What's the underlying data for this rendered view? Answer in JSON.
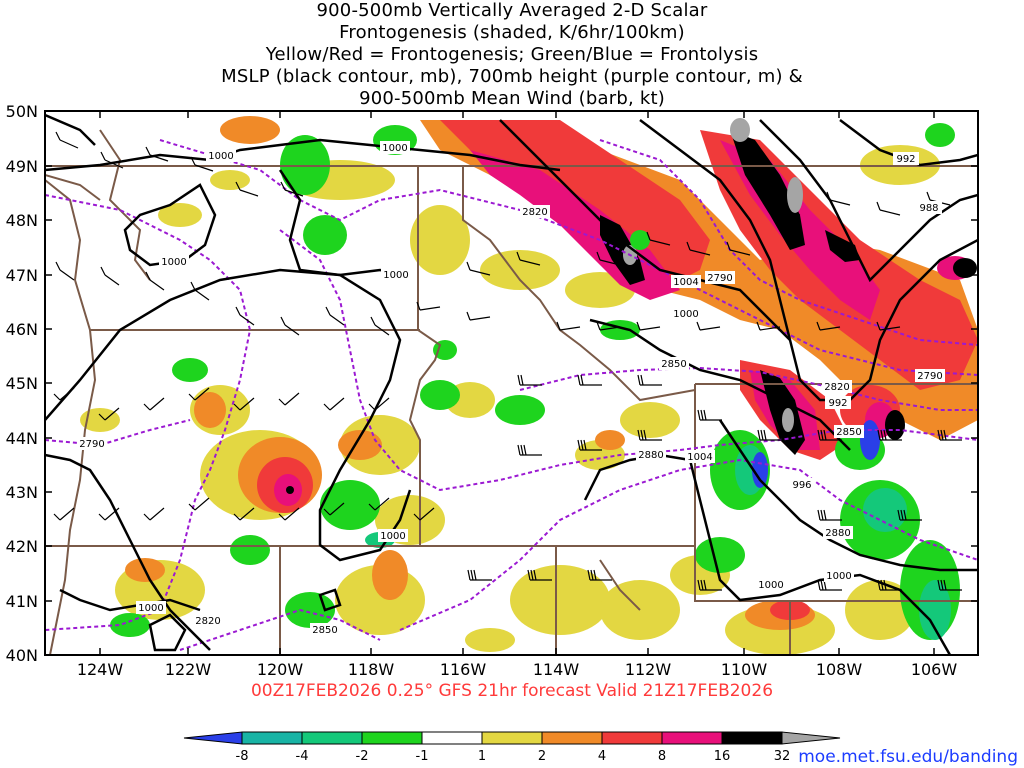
{
  "title": {
    "lines": [
      "900-500mb Vertically Averaged 2-D Scalar",
      "Frontogenesis (shaded, K/6hr/100km)",
      "Yellow/Red = Frontogenesis;  Green/Blue = Frontolysis",
      "MSLP (black contour, mb), 700mb height (purple contour, m) &",
      "900-500mb Mean Wind (barb, kt)"
    ]
  },
  "axes": {
    "lat_labels": [
      "50N",
      "49N",
      "48N",
      "47N",
      "46N",
      "45N",
      "44N",
      "43N",
      "42N",
      "41N",
      "40N"
    ],
    "lon_labels": [
      "124W",
      "122W",
      "120W",
      "118W",
      "116W",
      "114W",
      "112W",
      "110W",
      "108W",
      "106W"
    ],
    "lat_range": [
      40,
      50
    ],
    "lon_range": [
      -125,
      -105
    ]
  },
  "valid_line": "00Z17FEB2026 0.25° GFS 21hr forecast Valid 21Z17FEB2026",
  "colorbar": {
    "labels": [
      "-8",
      "-4",
      "-2",
      "-1",
      "1",
      "2",
      "4",
      "8",
      "16",
      "32"
    ],
    "colors": [
      "#2a3fe8",
      "#18b4a5",
      "#14c87a",
      "#1ed41e",
      "#ffffff",
      "#e3d742",
      "#f08a28",
      "#f03a3a",
      "#e8107a",
      "#000000",
      "#a5a5a5"
    ]
  },
  "contour_labels": {
    "mslp": [
      "1000",
      "1000",
      "1000",
      "1000",
      "1000",
      "1004",
      "1000",
      "992",
      "988",
      "992",
      "996",
      "1004",
      "1000",
      "1000",
      "1000"
    ],
    "height": [
      "2820",
      "2790",
      "2790",
      "2850",
      "2820",
      "2850",
      "2880",
      "2880",
      "2790",
      "2820",
      "2850"
    ]
  },
  "colors": {
    "state_borders": "#7a5a48",
    "coastline": "#7a5a48",
    "mslp_contour": "#000000",
    "height_contour": "#9b19d2",
    "valid_line": "#ff3a3a",
    "website": "#1c3cff"
  },
  "website": "moe.met.fsu.edu/banding"
}
